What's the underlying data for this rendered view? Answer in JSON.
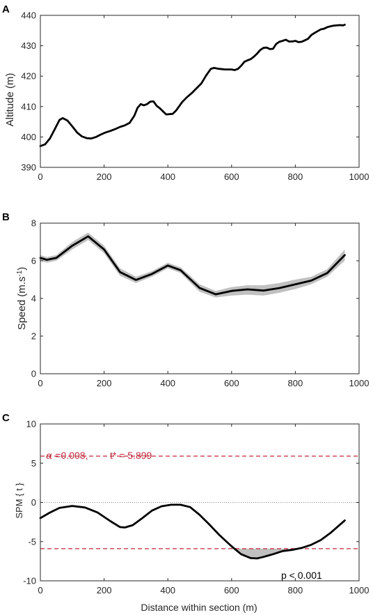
{
  "chart_data": [
    {
      "panel": "A",
      "type": "line",
      "xlabel": "",
      "ylabel": "Altitude (m)",
      "xlim": [
        0,
        1000
      ],
      "ylim": [
        390,
        440
      ],
      "xticks": [
        0,
        200,
        400,
        600,
        800,
        1000
      ],
      "yticks": [
        390,
        400,
        410,
        420,
        430,
        440
      ],
      "series": [
        {
          "color": "#000000",
          "x": [
            0,
            15,
            30,
            45,
            60,
            70,
            85,
            100,
            115,
            130,
            145,
            160,
            175,
            190,
            205,
            220,
            235,
            250,
            265,
            280,
            295,
            305,
            315,
            325,
            335,
            345,
            355,
            365,
            375,
            385,
            395,
            405,
            415,
            425,
            435,
            445,
            460,
            475,
            490,
            505,
            520,
            535,
            545,
            560,
            580,
            600,
            610,
            620,
            630,
            640,
            650,
            660,
            670,
            680,
            690,
            700,
            710,
            720,
            730,
            740,
            750,
            760,
            770,
            780,
            790,
            800,
            810,
            820,
            830,
            840,
            850,
            860,
            870,
            880,
            890,
            900,
            910,
            920,
            930,
            940,
            950,
            955
          ],
          "y": [
            397,
            397.6,
            399.5,
            402.5,
            405.6,
            406.2,
            405.4,
            403.5,
            401.5,
            400.2,
            399.6,
            399.5,
            400,
            400.8,
            401.5,
            402,
            402.6,
            403.3,
            403.8,
            404.6,
            407,
            409.6,
            410.8,
            410.4,
            410.8,
            411.6,
            411.7,
            410.2,
            409.4,
            408.4,
            407.4,
            407.5,
            407.6,
            408.6,
            410,
            411.5,
            413.1,
            414.4,
            416,
            417.6,
            420.2,
            422.4,
            422.7,
            422.4,
            422.2,
            422.2,
            422,
            422.4,
            423.4,
            424.7,
            425.2,
            425.6,
            426.4,
            427.4,
            428.6,
            429.3,
            429.4,
            428.9,
            429,
            430.6,
            431.3,
            431.6,
            432,
            431.4,
            431.4,
            431.6,
            431.2,
            431.3,
            431.8,
            432.3,
            433.5,
            434.2,
            434.8,
            435.4,
            435.6,
            436.1,
            436.4,
            436.6,
            436.7,
            436.8,
            436.7,
            436.9
          ]
        }
      ]
    },
    {
      "panel": "B",
      "type": "line",
      "xlabel": "",
      "ylabel": "Speed (m.s",
      "ylabel_sup": "-1",
      "ylabel_close": ")",
      "xlim": [
        0,
        1000
      ],
      "ylim": [
        0,
        8
      ],
      "xticks": [
        0,
        200,
        400,
        600,
        800,
        1000
      ],
      "yticks": [
        0,
        2,
        4,
        6,
        8
      ],
      "band_color": "#c0c0c0",
      "series": [
        {
          "color": "#000000",
          "x": [
            0,
            20,
            50,
            100,
            150,
            200,
            250,
            300,
            350,
            400,
            440,
            500,
            550,
            600,
            650,
            700,
            750,
            800,
            850,
            900,
            955
          ],
          "y": [
            6.15,
            6.05,
            6.15,
            6.8,
            7.3,
            6.6,
            5.4,
            4.98,
            5.3,
            5.75,
            5.5,
            4.55,
            4.22,
            4.4,
            4.48,
            4.42,
            4.55,
            4.75,
            4.95,
            5.35,
            6.3
          ],
          "band_upper": [
            6.3,
            6.2,
            6.3,
            7.0,
            7.5,
            6.8,
            5.6,
            5.15,
            5.45,
            5.9,
            5.65,
            4.75,
            4.4,
            4.6,
            4.7,
            4.7,
            4.82,
            5.0,
            5.15,
            5.55,
            6.6
          ],
          "band_lower": [
            6.0,
            5.9,
            6.0,
            6.6,
            7.1,
            6.4,
            5.2,
            4.82,
            5.15,
            5.6,
            5.35,
            4.35,
            4.05,
            4.15,
            4.2,
            4.15,
            4.3,
            4.5,
            4.75,
            5.15,
            6.0
          ]
        }
      ]
    },
    {
      "panel": "C",
      "type": "line",
      "xlabel": "Distance within section (m)",
      "ylabel": "SPM { t }",
      "xlim": [
        0,
        1000
      ],
      "ylim": [
        -10,
        10
      ],
      "xticks": [
        0,
        200,
        400,
        600,
        800,
        1000
      ],
      "yticks": [
        -10,
        -5,
        0,
        5,
        10
      ],
      "threshold": 5.899,
      "threshold_color": "#c0283c",
      "zero_line": 0,
      "annotation_alpha_symbol": "α",
      "annotation_alpha": " =0.008,",
      "annotation_t": "t* = 5.899",
      "annotation_p": "p < 0.001",
      "band_color": "#c0c0c0",
      "series": [
        {
          "color": "#000000",
          "x": [
            0,
            30,
            60,
            100,
            140,
            180,
            220,
            250,
            265,
            290,
            320,
            350,
            380,
            410,
            440,
            470,
            500,
            530,
            560,
            600,
            630,
            660,
            680,
            700,
            730,
            760,
            790,
            820,
            850,
            880,
            910,
            955
          ],
          "y": [
            -2,
            -1.3,
            -0.7,
            -0.45,
            -0.65,
            -1.3,
            -2.4,
            -3.15,
            -3.2,
            -2.9,
            -2,
            -1.05,
            -0.5,
            -0.3,
            -0.3,
            -0.6,
            -1.6,
            -2.8,
            -4.1,
            -5.6,
            -6.6,
            -7.1,
            -7.15,
            -6.95,
            -6.6,
            -6.2,
            -6.05,
            -5.8,
            -5.4,
            -4.8,
            -3.9,
            -2.3
          ]
        }
      ]
    }
  ]
}
